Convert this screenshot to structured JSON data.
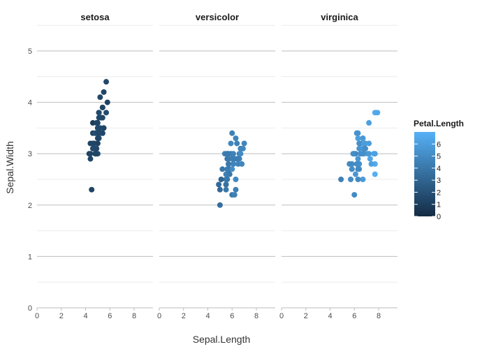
{
  "chart_data": {
    "type": "scatter",
    "xlabel": "Sepal.Length",
    "ylabel": "Sepal.Width",
    "xlim": [
      0,
      9.5
    ],
    "ylim": [
      0,
      5.5
    ],
    "x_ticks": [
      0,
      2,
      4,
      6,
      8
    ],
    "y_ticks": [
      0,
      1,
      2,
      3,
      4,
      5
    ],
    "grid": true,
    "color_by": "Petal.Length",
    "colorbar": {
      "title": "Petal.Length",
      "range": [
        0,
        7
      ],
      "ticks": [
        0,
        1,
        2,
        3,
        4,
        5,
        6
      ],
      "low_color": "#132B43",
      "high_color": "#56B1F7",
      "placement": "right"
    },
    "panels": [
      {
        "name": "setosa",
        "points": [
          {
            "x": 5.1,
            "y": 3.5,
            "c": 1.4
          },
          {
            "x": 4.9,
            "y": 3.0,
            "c": 1.4
          },
          {
            "x": 4.7,
            "y": 3.2,
            "c": 1.3
          },
          {
            "x": 4.6,
            "y": 3.1,
            "c": 1.5
          },
          {
            "x": 5.0,
            "y": 3.6,
            "c": 1.4
          },
          {
            "x": 5.4,
            "y": 3.9,
            "c": 1.7
          },
          {
            "x": 4.6,
            "y": 3.4,
            "c": 1.4
          },
          {
            "x": 5.0,
            "y": 3.4,
            "c": 1.5
          },
          {
            "x": 4.4,
            "y": 2.9,
            "c": 1.4
          },
          {
            "x": 4.9,
            "y": 3.1,
            "c": 1.5
          },
          {
            "x": 5.4,
            "y": 3.7,
            "c": 1.5
          },
          {
            "x": 4.8,
            "y": 3.4,
            "c": 1.6
          },
          {
            "x": 4.8,
            "y": 3.0,
            "c": 1.4
          },
          {
            "x": 4.3,
            "y": 3.0,
            "c": 1.1
          },
          {
            "x": 5.8,
            "y": 4.0,
            "c": 1.2
          },
          {
            "x": 5.7,
            "y": 4.4,
            "c": 1.5
          },
          {
            "x": 5.4,
            "y": 3.9,
            "c": 1.3
          },
          {
            "x": 5.1,
            "y": 3.5,
            "c": 1.4
          },
          {
            "x": 5.7,
            "y": 3.8,
            "c": 1.7
          },
          {
            "x": 5.1,
            "y": 3.8,
            "c": 1.5
          },
          {
            "x": 5.4,
            "y": 3.4,
            "c": 1.7
          },
          {
            "x": 5.1,
            "y": 3.7,
            "c": 1.5
          },
          {
            "x": 4.6,
            "y": 3.6,
            "c": 1.0
          },
          {
            "x": 5.1,
            "y": 3.3,
            "c": 1.7
          },
          {
            "x": 4.8,
            "y": 3.4,
            "c": 1.9
          },
          {
            "x": 5.0,
            "y": 3.0,
            "c": 1.6
          },
          {
            "x": 5.0,
            "y": 3.4,
            "c": 1.6
          },
          {
            "x": 5.2,
            "y": 3.5,
            "c": 1.5
          },
          {
            "x": 5.2,
            "y": 3.4,
            "c": 1.4
          },
          {
            "x": 4.7,
            "y": 3.2,
            "c": 1.6
          },
          {
            "x": 4.8,
            "y": 3.1,
            "c": 1.6
          },
          {
            "x": 5.4,
            "y": 3.4,
            "c": 1.5
          },
          {
            "x": 5.2,
            "y": 4.1,
            "c": 1.5
          },
          {
            "x": 5.5,
            "y": 4.2,
            "c": 1.4
          },
          {
            "x": 4.9,
            "y": 3.1,
            "c": 1.5
          },
          {
            "x": 5.0,
            "y": 3.2,
            "c": 1.2
          },
          {
            "x": 5.5,
            "y": 3.5,
            "c": 1.3
          },
          {
            "x": 4.9,
            "y": 3.6,
            "c": 1.4
          },
          {
            "x": 4.4,
            "y": 3.0,
            "c": 1.3
          },
          {
            "x": 5.1,
            "y": 3.4,
            "c": 1.5
          },
          {
            "x": 5.0,
            "y": 3.5,
            "c": 1.3
          },
          {
            "x": 4.5,
            "y": 2.3,
            "c": 1.3
          },
          {
            "x": 4.4,
            "y": 3.2,
            "c": 1.3
          },
          {
            "x": 5.0,
            "y": 3.5,
            "c": 1.6
          },
          {
            "x": 5.1,
            "y": 3.8,
            "c": 1.9
          },
          {
            "x": 4.8,
            "y": 3.0,
            "c": 1.4
          },
          {
            "x": 5.1,
            "y": 3.8,
            "c": 1.6
          },
          {
            "x": 4.6,
            "y": 3.2,
            "c": 1.4
          },
          {
            "x": 5.3,
            "y": 3.7,
            "c": 1.5
          },
          {
            "x": 5.0,
            "y": 3.3,
            "c": 1.4
          }
        ]
      },
      {
        "name": "versicolor",
        "points": [
          {
            "x": 7.0,
            "y": 3.2,
            "c": 4.7
          },
          {
            "x": 6.4,
            "y": 3.2,
            "c": 4.5
          },
          {
            "x": 6.9,
            "y": 3.1,
            "c": 4.9
          },
          {
            "x": 5.5,
            "y": 2.3,
            "c": 4.0
          },
          {
            "x": 6.5,
            "y": 2.8,
            "c": 4.6
          },
          {
            "x": 5.7,
            "y": 2.8,
            "c": 4.5
          },
          {
            "x": 6.3,
            "y": 3.3,
            "c": 4.7
          },
          {
            "x": 4.9,
            "y": 2.4,
            "c": 3.3
          },
          {
            "x": 6.6,
            "y": 2.9,
            "c": 4.6
          },
          {
            "x": 5.2,
            "y": 2.7,
            "c": 3.9
          },
          {
            "x": 5.0,
            "y": 2.0,
            "c": 3.5
          },
          {
            "x": 5.9,
            "y": 3.0,
            "c": 4.2
          },
          {
            "x": 6.0,
            "y": 2.2,
            "c": 4.0
          },
          {
            "x": 6.1,
            "y": 2.9,
            "c": 4.7
          },
          {
            "x": 5.6,
            "y": 2.9,
            "c": 3.6
          },
          {
            "x": 6.7,
            "y": 3.1,
            "c": 4.4
          },
          {
            "x": 5.6,
            "y": 3.0,
            "c": 4.5
          },
          {
            "x": 5.8,
            "y": 2.7,
            "c": 4.1
          },
          {
            "x": 6.2,
            "y": 2.2,
            "c": 4.5
          },
          {
            "x": 5.6,
            "y": 2.5,
            "c": 3.9
          },
          {
            "x": 5.9,
            "y": 3.2,
            "c": 4.8
          },
          {
            "x": 6.1,
            "y": 2.8,
            "c": 4.0
          },
          {
            "x": 6.3,
            "y": 2.5,
            "c": 4.9
          },
          {
            "x": 6.1,
            "y": 2.8,
            "c": 4.7
          },
          {
            "x": 6.4,
            "y": 2.9,
            "c": 4.3
          },
          {
            "x": 6.6,
            "y": 3.0,
            "c": 4.4
          },
          {
            "x": 6.8,
            "y": 2.8,
            "c": 4.8
          },
          {
            "x": 6.7,
            "y": 3.0,
            "c": 5.0
          },
          {
            "x": 6.0,
            "y": 2.9,
            "c": 4.5
          },
          {
            "x": 5.7,
            "y": 2.6,
            "c": 3.5
          },
          {
            "x": 5.5,
            "y": 2.4,
            "c": 3.8
          },
          {
            "x": 5.5,
            "y": 2.4,
            "c": 3.7
          },
          {
            "x": 5.8,
            "y": 2.7,
            "c": 3.9
          },
          {
            "x": 6.0,
            "y": 2.7,
            "c": 5.1
          },
          {
            "x": 5.4,
            "y": 3.0,
            "c": 4.5
          },
          {
            "x": 6.0,
            "y": 3.4,
            "c": 4.5
          },
          {
            "x": 6.7,
            "y": 3.1,
            "c": 4.7
          },
          {
            "x": 6.3,
            "y": 2.3,
            "c": 4.4
          },
          {
            "x": 5.6,
            "y": 3.0,
            "c": 4.1
          },
          {
            "x": 5.5,
            "y": 2.5,
            "c": 4.0
          },
          {
            "x": 5.5,
            "y": 2.6,
            "c": 4.4
          },
          {
            "x": 6.1,
            "y": 3.0,
            "c": 4.6
          },
          {
            "x": 5.8,
            "y": 2.6,
            "c": 4.0
          },
          {
            "x": 5.0,
            "y": 2.3,
            "c": 3.3
          },
          {
            "x": 5.6,
            "y": 2.7,
            "c": 4.2
          },
          {
            "x": 5.7,
            "y": 3.0,
            "c": 4.2
          },
          {
            "x": 5.7,
            "y": 2.9,
            "c": 4.2
          },
          {
            "x": 6.2,
            "y": 2.9,
            "c": 4.3
          },
          {
            "x": 5.1,
            "y": 2.5,
            "c": 3.0
          },
          {
            "x": 5.7,
            "y": 2.8,
            "c": 4.1
          }
        ]
      },
      {
        "name": "virginica",
        "points": [
          {
            "x": 6.3,
            "y": 3.3,
            "c": 6.0
          },
          {
            "x": 5.8,
            "y": 2.7,
            "c": 5.1
          },
          {
            "x": 7.1,
            "y": 3.0,
            "c": 5.9
          },
          {
            "x": 6.3,
            "y": 2.9,
            "c": 5.6
          },
          {
            "x": 6.5,
            "y": 3.0,
            "c": 5.8
          },
          {
            "x": 7.6,
            "y": 3.0,
            "c": 6.6
          },
          {
            "x": 4.9,
            "y": 2.5,
            "c": 4.5
          },
          {
            "x": 7.3,
            "y": 2.9,
            "c": 6.3
          },
          {
            "x": 6.7,
            "y": 2.5,
            "c": 5.8
          },
          {
            "x": 7.2,
            "y": 3.6,
            "c": 6.1
          },
          {
            "x": 6.5,
            "y": 3.2,
            "c": 5.1
          },
          {
            "x": 6.4,
            "y": 2.7,
            "c": 5.3
          },
          {
            "x": 6.8,
            "y": 3.0,
            "c": 5.5
          },
          {
            "x": 5.7,
            "y": 2.5,
            "c": 5.0
          },
          {
            "x": 5.8,
            "y": 2.8,
            "c": 5.1
          },
          {
            "x": 6.4,
            "y": 3.2,
            "c": 5.3
          },
          {
            "x": 6.5,
            "y": 3.0,
            "c": 5.5
          },
          {
            "x": 7.7,
            "y": 3.8,
            "c": 6.7
          },
          {
            "x": 7.7,
            "y": 2.6,
            "c": 6.9
          },
          {
            "x": 6.0,
            "y": 2.2,
            "c": 5.0
          },
          {
            "x": 6.9,
            "y": 3.2,
            "c": 5.7
          },
          {
            "x": 5.6,
            "y": 2.8,
            "c": 4.9
          },
          {
            "x": 7.7,
            "y": 2.8,
            "c": 6.7
          },
          {
            "x": 6.3,
            "y": 2.7,
            "c": 4.9
          },
          {
            "x": 6.7,
            "y": 3.3,
            "c": 5.7
          },
          {
            "x": 7.2,
            "y": 3.2,
            "c": 6.0
          },
          {
            "x": 6.2,
            "y": 2.8,
            "c": 4.8
          },
          {
            "x": 6.1,
            "y": 3.0,
            "c": 4.9
          },
          {
            "x": 6.4,
            "y": 2.8,
            "c": 5.6
          },
          {
            "x": 7.2,
            "y": 3.0,
            "c": 5.8
          },
          {
            "x": 7.4,
            "y": 2.8,
            "c": 6.1
          },
          {
            "x": 7.9,
            "y": 3.8,
            "c": 6.4
          },
          {
            "x": 6.4,
            "y": 2.8,
            "c": 5.6
          },
          {
            "x": 6.3,
            "y": 2.8,
            "c": 5.1
          },
          {
            "x": 6.1,
            "y": 2.6,
            "c": 5.6
          },
          {
            "x": 7.7,
            "y": 3.0,
            "c": 6.1
          },
          {
            "x": 6.3,
            "y": 3.4,
            "c": 5.6
          },
          {
            "x": 6.4,
            "y": 3.1,
            "c": 5.5
          },
          {
            "x": 6.0,
            "y": 3.0,
            "c": 4.8
          },
          {
            "x": 6.9,
            "y": 3.1,
            "c": 5.4
          },
          {
            "x": 6.7,
            "y": 3.1,
            "c": 5.6
          },
          {
            "x": 6.9,
            "y": 3.1,
            "c": 5.1
          },
          {
            "x": 5.8,
            "y": 2.7,
            "c": 5.1
          },
          {
            "x": 6.8,
            "y": 3.2,
            "c": 5.9
          },
          {
            "x": 6.7,
            "y": 3.3,
            "c": 5.7
          },
          {
            "x": 6.7,
            "y": 3.0,
            "c": 5.2
          },
          {
            "x": 6.3,
            "y": 2.5,
            "c": 5.0
          },
          {
            "x": 6.5,
            "y": 3.0,
            "c": 5.2
          },
          {
            "x": 6.2,
            "y": 3.4,
            "c": 5.4
          },
          {
            "x": 5.9,
            "y": 3.0,
            "c": 5.1
          }
        ]
      }
    ]
  }
}
